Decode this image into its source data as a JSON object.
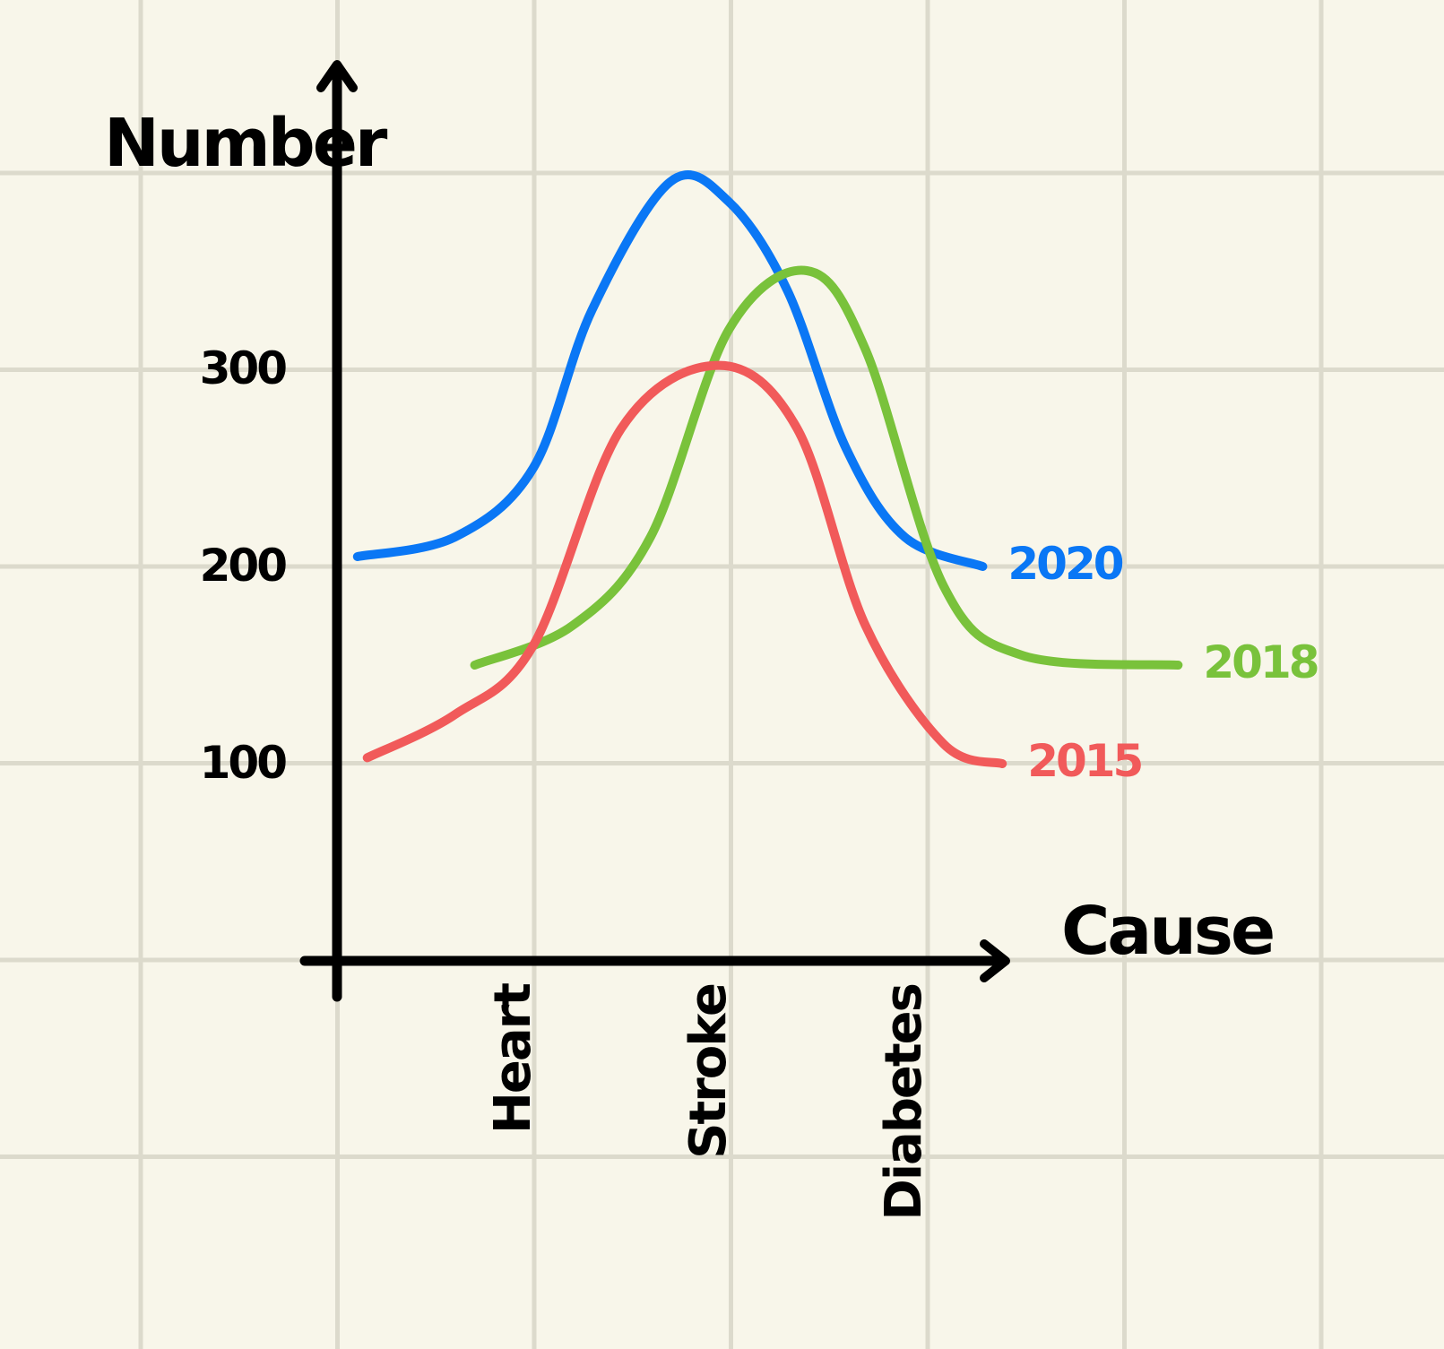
{
  "chart_data": {
    "type": "line",
    "xlabel": "Cause",
    "ylabel": "Number",
    "categories": [
      "Heart",
      "Stroke",
      "Diabetes"
    ],
    "yticks": [
      100,
      200,
      300
    ],
    "ylim": [
      0,
      400
    ],
    "grid": true,
    "series": [
      {
        "name": "2020",
        "color": "#0a77f5",
        "points": [
          [
            -0.9,
            205
          ],
          [
            -0.4,
            215
          ],
          [
            0,
            250
          ],
          [
            0.3,
            330
          ],
          [
            0.7,
            395
          ],
          [
            1.0,
            385
          ],
          [
            1.3,
            340
          ],
          [
            1.6,
            260
          ],
          [
            1.9,
            215
          ],
          [
            2.3,
            200
          ]
        ]
      },
      {
        "name": "2018",
        "color": "#79c23b",
        "points": [
          [
            -0.3,
            150
          ],
          [
            0.2,
            170
          ],
          [
            0.6,
            215
          ],
          [
            1.0,
            320
          ],
          [
            1.4,
            350
          ],
          [
            1.7,
            310
          ],
          [
            2.1,
            190
          ],
          [
            2.5,
            155
          ],
          [
            3.3,
            150
          ]
        ]
      },
      {
        "name": "2015",
        "color": "#f15a5a",
        "points": [
          [
            -0.85,
            103
          ],
          [
            -0.4,
            125
          ],
          [
            0,
            160
          ],
          [
            0.45,
            270
          ],
          [
            0.95,
            302
          ],
          [
            1.35,
            270
          ],
          [
            1.7,
            170
          ],
          [
            2.1,
            110
          ],
          [
            2.4,
            100
          ]
        ]
      }
    ]
  }
}
